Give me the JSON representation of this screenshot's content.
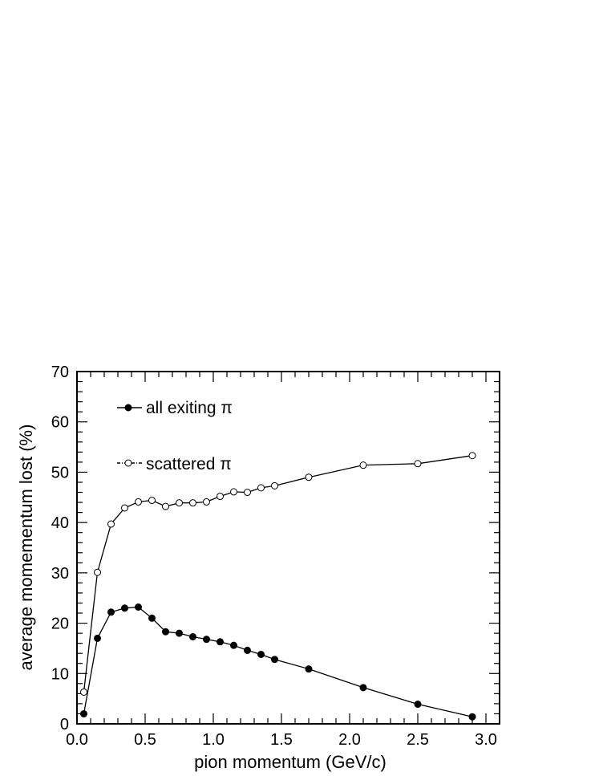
{
  "chart_data": {
    "type": "line",
    "xlabel": "pion momentum (GeV/c)",
    "ylabel": "average momementum lost (%)",
    "xlim": [
      0,
      3.1
    ],
    "ylim": [
      0,
      70
    ],
    "x_ticks": [
      "0.0",
      "0.5",
      "1.0",
      "1.5",
      "2.0",
      "2.5",
      "3.0"
    ],
    "y_ticks": [
      "0",
      "10",
      "20",
      "30",
      "40",
      "50",
      "60",
      "70"
    ],
    "grid": false,
    "legend_position": "top-left",
    "series": [
      {
        "name": "all exiting π",
        "marker": "filled-circle",
        "color": "#000000",
        "x": [
          0.05,
          0.15,
          0.25,
          0.35,
          0.45,
          0.55,
          0.65,
          0.75,
          0.85,
          0.95,
          1.05,
          1.15,
          1.25,
          1.35,
          1.45,
          1.7,
          2.1,
          2.5,
          2.9
        ],
        "y": [
          2.0,
          17.0,
          22.2,
          23.0,
          23.2,
          21.0,
          18.3,
          18.0,
          17.3,
          16.8,
          16.3,
          15.6,
          14.6,
          13.8,
          12.8,
          10.9,
          7.2,
          3.9,
          1.4
        ]
      },
      {
        "name": "scattered π",
        "marker": "open-circle",
        "color": "#000000",
        "x": [
          0.05,
          0.15,
          0.25,
          0.35,
          0.45,
          0.55,
          0.65,
          0.75,
          0.85,
          0.95,
          1.05,
          1.15,
          1.25,
          1.35,
          1.45,
          1.7,
          2.1,
          2.5,
          2.9
        ],
        "y": [
          6.3,
          30.1,
          39.7,
          42.9,
          44.1,
          44.4,
          43.2,
          43.9,
          43.9,
          44.1,
          45.2,
          46.1,
          46.0,
          46.9,
          47.3,
          49.0,
          51.4,
          51.7,
          53.3
        ]
      }
    ]
  }
}
